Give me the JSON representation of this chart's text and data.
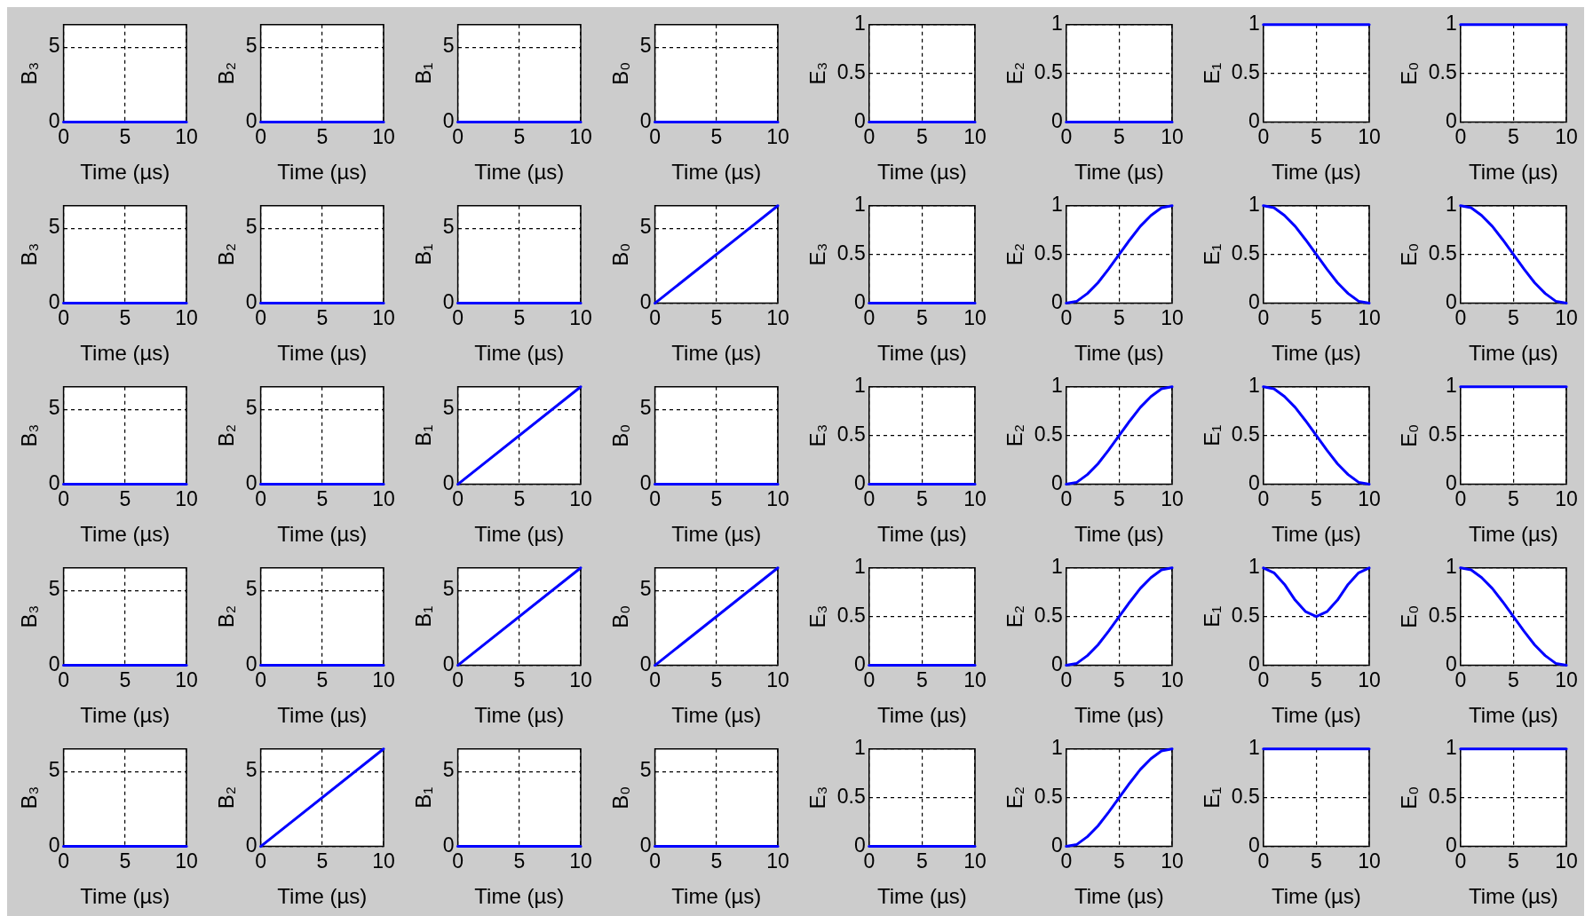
{
  "chart_data": [
    {
      "type": "line",
      "xlabel": "Time (µs)",
      "ylabel": "B₃",
      "xlim": [
        0,
        10
      ],
      "xticks": [
        0,
        5,
        10
      ],
      "ylim": [
        0,
        6.5
      ],
      "yticks": [
        0,
        5
      ],
      "grid": true,
      "series": [
        {
          "color": "#0000ff",
          "x": [
            0,
            10
          ],
          "values": [
            0,
            0
          ]
        }
      ]
    },
    {
      "type": "line",
      "xlabel": "Time (µs)",
      "ylabel": "B₂",
      "xlim": [
        0,
        10
      ],
      "xticks": [
        0,
        5,
        10
      ],
      "ylim": [
        0,
        6.5
      ],
      "yticks": [
        0,
        5
      ],
      "grid": true,
      "series": [
        {
          "color": "#0000ff",
          "x": [
            0,
            10
          ],
          "values": [
            0,
            0
          ]
        }
      ]
    },
    {
      "type": "line",
      "xlabel": "Time (µs)",
      "ylabel": "B₁",
      "xlim": [
        0,
        10
      ],
      "xticks": [
        0,
        5,
        10
      ],
      "ylim": [
        0,
        6.5
      ],
      "yticks": [
        0,
        5
      ],
      "grid": true,
      "series": [
        {
          "color": "#0000ff",
          "x": [
            0,
            10
          ],
          "values": [
            0,
            0
          ]
        }
      ]
    },
    {
      "type": "line",
      "xlabel": "Time (µs)",
      "ylabel": "B₀",
      "xlim": [
        0,
        10
      ],
      "xticks": [
        0,
        5,
        10
      ],
      "ylim": [
        0,
        6.5
      ],
      "yticks": [
        0,
        5
      ],
      "grid": true,
      "series": [
        {
          "color": "#0000ff",
          "x": [
            0,
            10
          ],
          "values": [
            0,
            0
          ]
        }
      ]
    },
    {
      "type": "line",
      "xlabel": "Time (µs)",
      "ylabel": "E₃",
      "xlim": [
        0,
        10
      ],
      "xticks": [
        0,
        5,
        10
      ],
      "ylim": [
        0,
        1
      ],
      "yticks": [
        0,
        0.5,
        1
      ],
      "grid": true,
      "series": [
        {
          "color": "#0000ff",
          "x": [
            0,
            10
          ],
          "values": [
            0,
            0
          ]
        }
      ]
    },
    {
      "type": "line",
      "xlabel": "Time (µs)",
      "ylabel": "E₂",
      "xlim": [
        0,
        10
      ],
      "xticks": [
        0,
        5,
        10
      ],
      "ylim": [
        0,
        1
      ],
      "yticks": [
        0,
        0.5,
        1
      ],
      "grid": true,
      "series": [
        {
          "color": "#0000ff",
          "x": [
            0,
            10
          ],
          "values": [
            0,
            0
          ]
        }
      ]
    },
    {
      "type": "line",
      "xlabel": "Time (µs)",
      "ylabel": "E₁",
      "xlim": [
        0,
        10
      ],
      "xticks": [
        0,
        5,
        10
      ],
      "ylim": [
        0,
        1
      ],
      "yticks": [
        0,
        0.5,
        1
      ],
      "grid": true,
      "series": [
        {
          "color": "#0000ff",
          "x": [
            0,
            10
          ],
          "values": [
            1,
            1
          ]
        }
      ]
    },
    {
      "type": "line",
      "xlabel": "Time (µs)",
      "ylabel": "E₀",
      "xlim": [
        0,
        10
      ],
      "xticks": [
        0,
        5,
        10
      ],
      "ylim": [
        0,
        1
      ],
      "yticks": [
        0,
        0.5,
        1
      ],
      "grid": true,
      "series": [
        {
          "color": "#0000ff",
          "x": [
            0,
            10
          ],
          "values": [
            1,
            1
          ]
        }
      ]
    },
    {
      "type": "line",
      "xlabel": "Time (µs)",
      "ylabel": "B₃",
      "xlim": [
        0,
        10
      ],
      "xticks": [
        0,
        5,
        10
      ],
      "ylim": [
        0,
        6.5
      ],
      "yticks": [
        0,
        5
      ],
      "grid": true,
      "series": [
        {
          "color": "#0000ff",
          "x": [
            0,
            10
          ],
          "values": [
            0,
            0
          ]
        }
      ]
    },
    {
      "type": "line",
      "xlabel": "Time (µs)",
      "ylabel": "B₂",
      "xlim": [
        0,
        10
      ],
      "xticks": [
        0,
        5,
        10
      ],
      "ylim": [
        0,
        6.5
      ],
      "yticks": [
        0,
        5
      ],
      "grid": true,
      "series": [
        {
          "color": "#0000ff",
          "x": [
            0,
            10
          ],
          "values": [
            0,
            0
          ]
        }
      ]
    },
    {
      "type": "line",
      "xlabel": "Time (µs)",
      "ylabel": "B₁",
      "xlim": [
        0,
        10
      ],
      "xticks": [
        0,
        5,
        10
      ],
      "ylim": [
        0,
        6.5
      ],
      "yticks": [
        0,
        5
      ],
      "grid": true,
      "series": [
        {
          "color": "#0000ff",
          "x": [
            0,
            10
          ],
          "values": [
            0,
            0
          ]
        }
      ]
    },
    {
      "type": "line",
      "xlabel": "Time (µs)",
      "ylabel": "B₀",
      "xlim": [
        0,
        10
      ],
      "xticks": [
        0,
        5,
        10
      ],
      "ylim": [
        0,
        6.5
      ],
      "yticks": [
        0,
        5
      ],
      "grid": true,
      "series": [
        {
          "color": "#0000ff",
          "x": [
            0,
            10
          ],
          "values": [
            0,
            6.5
          ]
        }
      ]
    },
    {
      "type": "line",
      "xlabel": "Time (µs)",
      "ylabel": "E₃",
      "xlim": [
        0,
        10
      ],
      "xticks": [
        0,
        5,
        10
      ],
      "ylim": [
        0,
        1
      ],
      "yticks": [
        0,
        0.5,
        1
      ],
      "grid": true,
      "series": [
        {
          "color": "#0000ff",
          "x": [
            0,
            10
          ],
          "values": [
            0,
            0
          ]
        }
      ]
    },
    {
      "type": "line",
      "xlabel": "Time (µs)",
      "ylabel": "E₂",
      "xlim": [
        0,
        10
      ],
      "xticks": [
        0,
        5,
        10
      ],
      "ylim": [
        0,
        1
      ],
      "yticks": [
        0,
        0.5,
        1
      ],
      "grid": true,
      "series": [
        {
          "color": "#0000ff",
          "x": [
            0,
            1,
            2,
            3,
            4,
            5,
            6,
            7,
            8,
            9,
            10
          ],
          "values": [
            0,
            0.02,
            0.1,
            0.21,
            0.35,
            0.5,
            0.65,
            0.79,
            0.9,
            0.98,
            1
          ]
        }
      ]
    },
    {
      "type": "line",
      "xlabel": "Time (µs)",
      "ylabel": "E₁",
      "xlim": [
        0,
        10
      ],
      "xticks": [
        0,
        5,
        10
      ],
      "ylim": [
        0,
        1
      ],
      "yticks": [
        0,
        0.5,
        1
      ],
      "grid": true,
      "series": [
        {
          "color": "#0000ff",
          "x": [
            0,
            1,
            2,
            3,
            4,
            5,
            6,
            7,
            8,
            9,
            10
          ],
          "values": [
            1,
            0.98,
            0.9,
            0.79,
            0.65,
            0.5,
            0.35,
            0.21,
            0.1,
            0.02,
            0
          ]
        }
      ]
    },
    {
      "type": "line",
      "xlabel": "Time (µs)",
      "ylabel": "E₀",
      "xlim": [
        0,
        10
      ],
      "xticks": [
        0,
        5,
        10
      ],
      "ylim": [
        0,
        1
      ],
      "yticks": [
        0,
        0.5,
        1
      ],
      "grid": true,
      "series": [
        {
          "color": "#0000ff",
          "x": [
            0,
            1,
            2,
            3,
            4,
            5,
            6,
            7,
            8,
            9,
            10
          ],
          "values": [
            1,
            0.98,
            0.9,
            0.79,
            0.65,
            0.5,
            0.35,
            0.21,
            0.1,
            0.02,
            0
          ]
        }
      ]
    },
    {
      "type": "line",
      "xlabel": "Time (µs)",
      "ylabel": "B₃",
      "xlim": [
        0,
        10
      ],
      "xticks": [
        0,
        5,
        10
      ],
      "ylim": [
        0,
        6.5
      ],
      "yticks": [
        0,
        5
      ],
      "grid": true,
      "series": [
        {
          "color": "#0000ff",
          "x": [
            0,
            10
          ],
          "values": [
            0,
            0
          ]
        }
      ]
    },
    {
      "type": "line",
      "xlabel": "Time (µs)",
      "ylabel": "B₂",
      "xlim": [
        0,
        10
      ],
      "xticks": [
        0,
        5,
        10
      ],
      "ylim": [
        0,
        6.5
      ],
      "yticks": [
        0,
        5
      ],
      "grid": true,
      "series": [
        {
          "color": "#0000ff",
          "x": [
            0,
            10
          ],
          "values": [
            0,
            0
          ]
        }
      ]
    },
    {
      "type": "line",
      "xlabel": "Time (µs)",
      "ylabel": "B₁",
      "xlim": [
        0,
        10
      ],
      "xticks": [
        0,
        5,
        10
      ],
      "ylim": [
        0,
        6.5
      ],
      "yticks": [
        0,
        5
      ],
      "grid": true,
      "series": [
        {
          "color": "#0000ff",
          "x": [
            0,
            10
          ],
          "values": [
            0,
            6.5
          ]
        }
      ]
    },
    {
      "type": "line",
      "xlabel": "Time (µs)",
      "ylabel": "B₀",
      "xlim": [
        0,
        10
      ],
      "xticks": [
        0,
        5,
        10
      ],
      "ylim": [
        0,
        6.5
      ],
      "yticks": [
        0,
        5
      ],
      "grid": true,
      "series": [
        {
          "color": "#0000ff",
          "x": [
            0,
            10
          ],
          "values": [
            0,
            0
          ]
        }
      ]
    },
    {
      "type": "line",
      "xlabel": "Time (µs)",
      "ylabel": "E₃",
      "xlim": [
        0,
        10
      ],
      "xticks": [
        0,
        5,
        10
      ],
      "ylim": [
        0,
        1
      ],
      "yticks": [
        0,
        0.5,
        1
      ],
      "grid": true,
      "series": [
        {
          "color": "#0000ff",
          "x": [
            0,
            10
          ],
          "values": [
            0,
            0
          ]
        }
      ]
    },
    {
      "type": "line",
      "xlabel": "Time (µs)",
      "ylabel": "E₂",
      "xlim": [
        0,
        10
      ],
      "xticks": [
        0,
        5,
        10
      ],
      "ylim": [
        0,
        1
      ],
      "yticks": [
        0,
        0.5,
        1
      ],
      "grid": true,
      "series": [
        {
          "color": "#0000ff",
          "x": [
            0,
            1,
            2,
            3,
            4,
            5,
            6,
            7,
            8,
            9,
            10
          ],
          "values": [
            0,
            0.02,
            0.1,
            0.21,
            0.35,
            0.5,
            0.65,
            0.79,
            0.9,
            0.98,
            1
          ]
        }
      ]
    },
    {
      "type": "line",
      "xlabel": "Time (µs)",
      "ylabel": "E₁",
      "xlim": [
        0,
        10
      ],
      "xticks": [
        0,
        5,
        10
      ],
      "ylim": [
        0,
        1
      ],
      "yticks": [
        0,
        0.5,
        1
      ],
      "grid": true,
      "series": [
        {
          "color": "#0000ff",
          "x": [
            0,
            1,
            2,
            3,
            4,
            5,
            6,
            7,
            8,
            9,
            10
          ],
          "values": [
            1,
            0.98,
            0.9,
            0.79,
            0.65,
            0.5,
            0.35,
            0.21,
            0.1,
            0.02,
            0
          ]
        }
      ]
    },
    {
      "type": "line",
      "xlabel": "Time (µs)",
      "ylabel": "E₀",
      "xlim": [
        0,
        10
      ],
      "xticks": [
        0,
        5,
        10
      ],
      "ylim": [
        0,
        1
      ],
      "yticks": [
        0,
        0.5,
        1
      ],
      "grid": true,
      "series": [
        {
          "color": "#0000ff",
          "x": [
            0,
            10
          ],
          "values": [
            1,
            1
          ]
        }
      ]
    },
    {
      "type": "line",
      "xlabel": "Time (µs)",
      "ylabel": "B₃",
      "xlim": [
        0,
        10
      ],
      "xticks": [
        0,
        5,
        10
      ],
      "ylim": [
        0,
        6.5
      ],
      "yticks": [
        0,
        5
      ],
      "grid": true,
      "series": [
        {
          "color": "#0000ff",
          "x": [
            0,
            10
          ],
          "values": [
            0,
            0
          ]
        }
      ]
    },
    {
      "type": "line",
      "xlabel": "Time (µs)",
      "ylabel": "B₂",
      "xlim": [
        0,
        10
      ],
      "xticks": [
        0,
        5,
        10
      ],
      "ylim": [
        0,
        6.5
      ],
      "yticks": [
        0,
        5
      ],
      "grid": true,
      "series": [
        {
          "color": "#0000ff",
          "x": [
            0,
            10
          ],
          "values": [
            0,
            0
          ]
        }
      ]
    },
    {
      "type": "line",
      "xlabel": "Time (µs)",
      "ylabel": "B₁",
      "xlim": [
        0,
        10
      ],
      "xticks": [
        0,
        5,
        10
      ],
      "ylim": [
        0,
        6.5
      ],
      "yticks": [
        0,
        5
      ],
      "grid": true,
      "series": [
        {
          "color": "#0000ff",
          "x": [
            0,
            10
          ],
          "values": [
            0,
            6.5
          ]
        }
      ]
    },
    {
      "type": "line",
      "xlabel": "Time (µs)",
      "ylabel": "B₀",
      "xlim": [
        0,
        10
      ],
      "xticks": [
        0,
        5,
        10
      ],
      "ylim": [
        0,
        6.5
      ],
      "yticks": [
        0,
        5
      ],
      "grid": true,
      "series": [
        {
          "color": "#0000ff",
          "x": [
            0,
            10
          ],
          "values": [
            0,
            6.5
          ]
        }
      ]
    },
    {
      "type": "line",
      "xlabel": "Time (µs)",
      "ylabel": "E₃",
      "xlim": [
        0,
        10
      ],
      "xticks": [
        0,
        5,
        10
      ],
      "ylim": [
        0,
        1
      ],
      "yticks": [
        0,
        0.5,
        1
      ],
      "grid": true,
      "series": [
        {
          "color": "#0000ff",
          "x": [
            0,
            10
          ],
          "values": [
            0,
            0
          ]
        }
      ]
    },
    {
      "type": "line",
      "xlabel": "Time (µs)",
      "ylabel": "E₂",
      "xlim": [
        0,
        10
      ],
      "xticks": [
        0,
        5,
        10
      ],
      "ylim": [
        0,
        1
      ],
      "yticks": [
        0,
        0.5,
        1
      ],
      "grid": true,
      "series": [
        {
          "color": "#0000ff",
          "x": [
            0,
            1,
            2,
            3,
            4,
            5,
            6,
            7,
            8,
            9,
            10
          ],
          "values": [
            0,
            0.02,
            0.1,
            0.21,
            0.35,
            0.5,
            0.65,
            0.79,
            0.9,
            0.98,
            1
          ]
        }
      ]
    },
    {
      "type": "line",
      "xlabel": "Time (µs)",
      "ylabel": "E₁",
      "xlim": [
        0,
        10
      ],
      "xticks": [
        0,
        5,
        10
      ],
      "ylim": [
        0,
        1
      ],
      "yticks": [
        0,
        0.5,
        1
      ],
      "grid": true,
      "series": [
        {
          "color": "#0000ff",
          "x": [
            0,
            1,
            2,
            3,
            4,
            5,
            6,
            7,
            8,
            9,
            10
          ],
          "values": [
            1,
            0.95,
            0.83,
            0.67,
            0.55,
            0.5,
            0.55,
            0.67,
            0.83,
            0.95,
            1
          ]
        }
      ]
    },
    {
      "type": "line",
      "xlabel": "Time (µs)",
      "ylabel": "E₀",
      "xlim": [
        0,
        10
      ],
      "xticks": [
        0,
        5,
        10
      ],
      "ylim": [
        0,
        1
      ],
      "yticks": [
        0,
        0.5,
        1
      ],
      "grid": true,
      "series": [
        {
          "color": "#0000ff",
          "x": [
            0,
            1,
            2,
            3,
            4,
            5,
            6,
            7,
            8,
            9,
            10
          ],
          "values": [
            1,
            0.98,
            0.9,
            0.79,
            0.65,
            0.5,
            0.35,
            0.21,
            0.1,
            0.02,
            0
          ]
        }
      ]
    },
    {
      "type": "line",
      "xlabel": "Time (µs)",
      "ylabel": "B₃",
      "xlim": [
        0,
        10
      ],
      "xticks": [
        0,
        5,
        10
      ],
      "ylim": [
        0,
        6.5
      ],
      "yticks": [
        0,
        5
      ],
      "grid": true,
      "series": [
        {
          "color": "#0000ff",
          "x": [
            0,
            10
          ],
          "values": [
            0,
            0
          ]
        }
      ]
    },
    {
      "type": "line",
      "xlabel": "Time (µs)",
      "ylabel": "B₂",
      "xlim": [
        0,
        10
      ],
      "xticks": [
        0,
        5,
        10
      ],
      "ylim": [
        0,
        6.5
      ],
      "yticks": [
        0,
        5
      ],
      "grid": true,
      "series": [
        {
          "color": "#0000ff",
          "x": [
            0,
            10
          ],
          "values": [
            0,
            6.5
          ]
        }
      ]
    },
    {
      "type": "line",
      "xlabel": "Time (µs)",
      "ylabel": "B₁",
      "xlim": [
        0,
        10
      ],
      "xticks": [
        0,
        5,
        10
      ],
      "ylim": [
        0,
        6.5
      ],
      "yticks": [
        0,
        5
      ],
      "grid": true,
      "series": [
        {
          "color": "#0000ff",
          "x": [
            0,
            10
          ],
          "values": [
            0,
            0
          ]
        }
      ]
    },
    {
      "type": "line",
      "xlabel": "Time (µs)",
      "ylabel": "B₀",
      "xlim": [
        0,
        10
      ],
      "xticks": [
        0,
        5,
        10
      ],
      "ylim": [
        0,
        6.5
      ],
      "yticks": [
        0,
        5
      ],
      "grid": true,
      "series": [
        {
          "color": "#0000ff",
          "x": [
            0,
            10
          ],
          "values": [
            0,
            0
          ]
        }
      ]
    },
    {
      "type": "line",
      "xlabel": "Time (µs)",
      "ylabel": "E₃",
      "xlim": [
        0,
        10
      ],
      "xticks": [
        0,
        5,
        10
      ],
      "ylim": [
        0,
        1
      ],
      "yticks": [
        0,
        0.5,
        1
      ],
      "grid": true,
      "series": [
        {
          "color": "#0000ff",
          "x": [
            0,
            10
          ],
          "values": [
            0,
            0
          ]
        }
      ]
    },
    {
      "type": "line",
      "xlabel": "Time (µs)",
      "ylabel": "E₂",
      "xlim": [
        0,
        10
      ],
      "xticks": [
        0,
        5,
        10
      ],
      "ylim": [
        0,
        1
      ],
      "yticks": [
        0,
        0.5,
        1
      ],
      "grid": true,
      "series": [
        {
          "color": "#0000ff",
          "x": [
            0,
            1,
            2,
            3,
            4,
            5,
            6,
            7,
            8,
            9,
            10
          ],
          "values": [
            0,
            0.02,
            0.1,
            0.21,
            0.35,
            0.5,
            0.65,
            0.79,
            0.9,
            0.98,
            1
          ]
        }
      ]
    },
    {
      "type": "line",
      "xlabel": "Time (µs)",
      "ylabel": "E₁",
      "xlim": [
        0,
        10
      ],
      "xticks": [
        0,
        5,
        10
      ],
      "ylim": [
        0,
        1
      ],
      "yticks": [
        0,
        0.5,
        1
      ],
      "grid": true,
      "series": [
        {
          "color": "#0000ff",
          "x": [
            0,
            10
          ],
          "values": [
            1,
            1
          ]
        }
      ]
    },
    {
      "type": "line",
      "xlabel": "Time (µs)",
      "ylabel": "E₀",
      "xlim": [
        0,
        10
      ],
      "xticks": [
        0,
        5,
        10
      ],
      "ylim": [
        0,
        1
      ],
      "yticks": [
        0,
        0.5,
        1
      ],
      "grid": true,
      "series": [
        {
          "color": "#0000ff",
          "x": [
            0,
            10
          ],
          "values": [
            1,
            1
          ]
        }
      ]
    }
  ]
}
